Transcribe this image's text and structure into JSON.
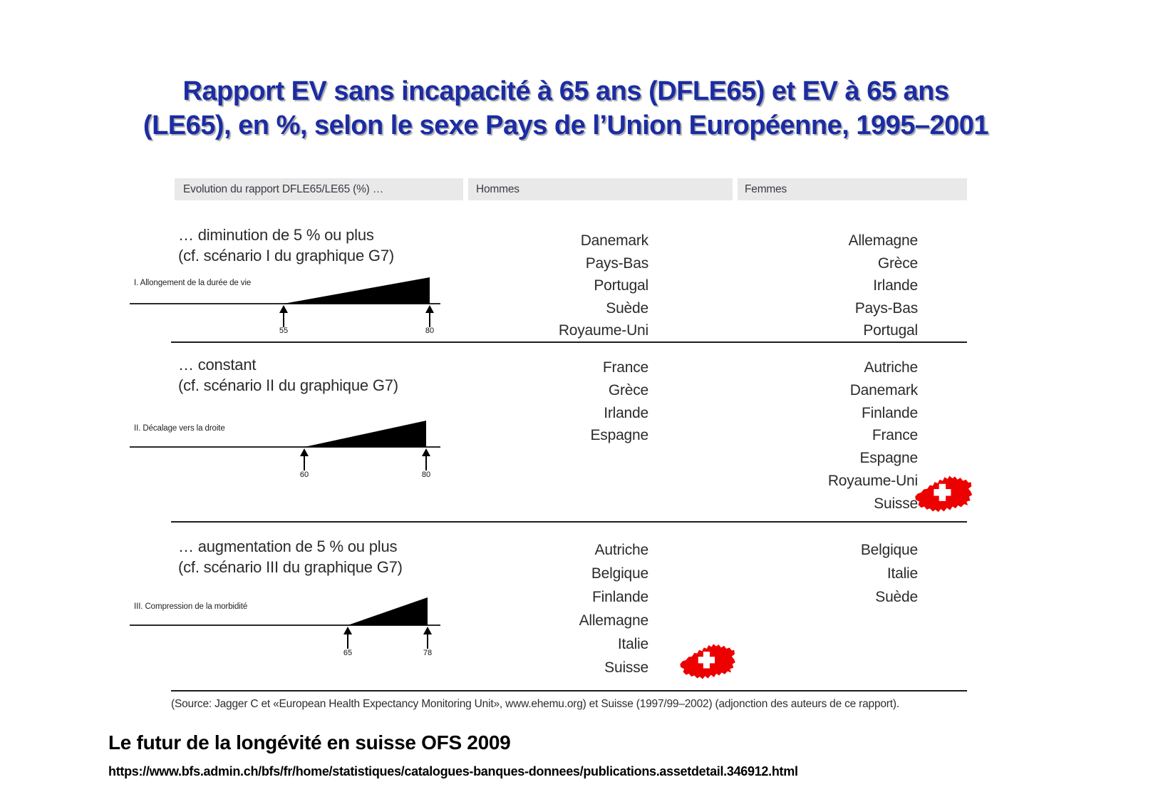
{
  "title": {
    "line1": "Rapport EV sans incapacité à 65 ans (DFLE65) et EV à 65 ans",
    "line2": "(LE65), en %, selon le sexe Pays de l’Union Européenne, 1995–2001"
  },
  "table": {
    "header": {
      "evolution": "Evolution du rapport DFLE65/LE65 (%) …",
      "hommes": "Hommes",
      "femmes": "Femmes"
    },
    "rows": [
      {
        "desc1": "… diminution de 5 % ou plus",
        "desc2": "(cf. scénario I du graphique G7)",
        "diagram": {
          "label": "I. Allongement de la durée de vie",
          "tick_start": "55",
          "tick_end": "80"
        },
        "hommes": [
          "Danemark",
          "Pays-Bas",
          "Portugal",
          "Suède",
          "Royaume-Uni"
        ],
        "femmes": [
          "Allemagne",
          "Grèce",
          "Irlande",
          "Pays-Bas",
          "Portugal"
        ]
      },
      {
        "desc1": "… constant",
        "desc2": "(cf. scénario II du graphique G7)",
        "diagram": {
          "label": "II. Décalage vers la droite",
          "tick_start": "60",
          "tick_end": "80"
        },
        "hommes": [
          "France",
          "Grèce",
          "Irlande",
          "Espagne"
        ],
        "femmes": [
          "Autriche",
          "Danemark",
          "Finlande",
          "France",
          "Espagne",
          "Royaume-Uni",
          "Suisse"
        ]
      },
      {
        "desc1": "… augmentation de 5 % ou plus",
        "desc2": "(cf. scénario III du graphique G7)",
        "diagram": {
          "label": "III. Compression de la morbidité",
          "tick_start": "65",
          "tick_end": "78"
        },
        "hommes": [
          "Autriche",
          "Belgique",
          "Finlande",
          "Allemagne",
          "Italie",
          "Suisse"
        ],
        "femmes": [
          "Belgique",
          "Italie",
          "Suède"
        ]
      }
    ],
    "source": "(Source: Jagger C et «European Health Expectancy Monitoring Unit», www.ehemu.org) et Suisse (1997/99–2002) (adjonction des auteurs de ce rapport)."
  },
  "footer": {
    "heading": "Le futur de la longévité en suisse OFS 2009",
    "url": "https://www.bfs.admin.ch/bfs/fr/home/statistiques/catalogues-banques-donnees/publications.assetdetail.346912.html"
  },
  "colors": {
    "title_blue": "#1b2ca3",
    "swiss_red": "#ec0000",
    "header_bg": "#e9e9e9"
  }
}
